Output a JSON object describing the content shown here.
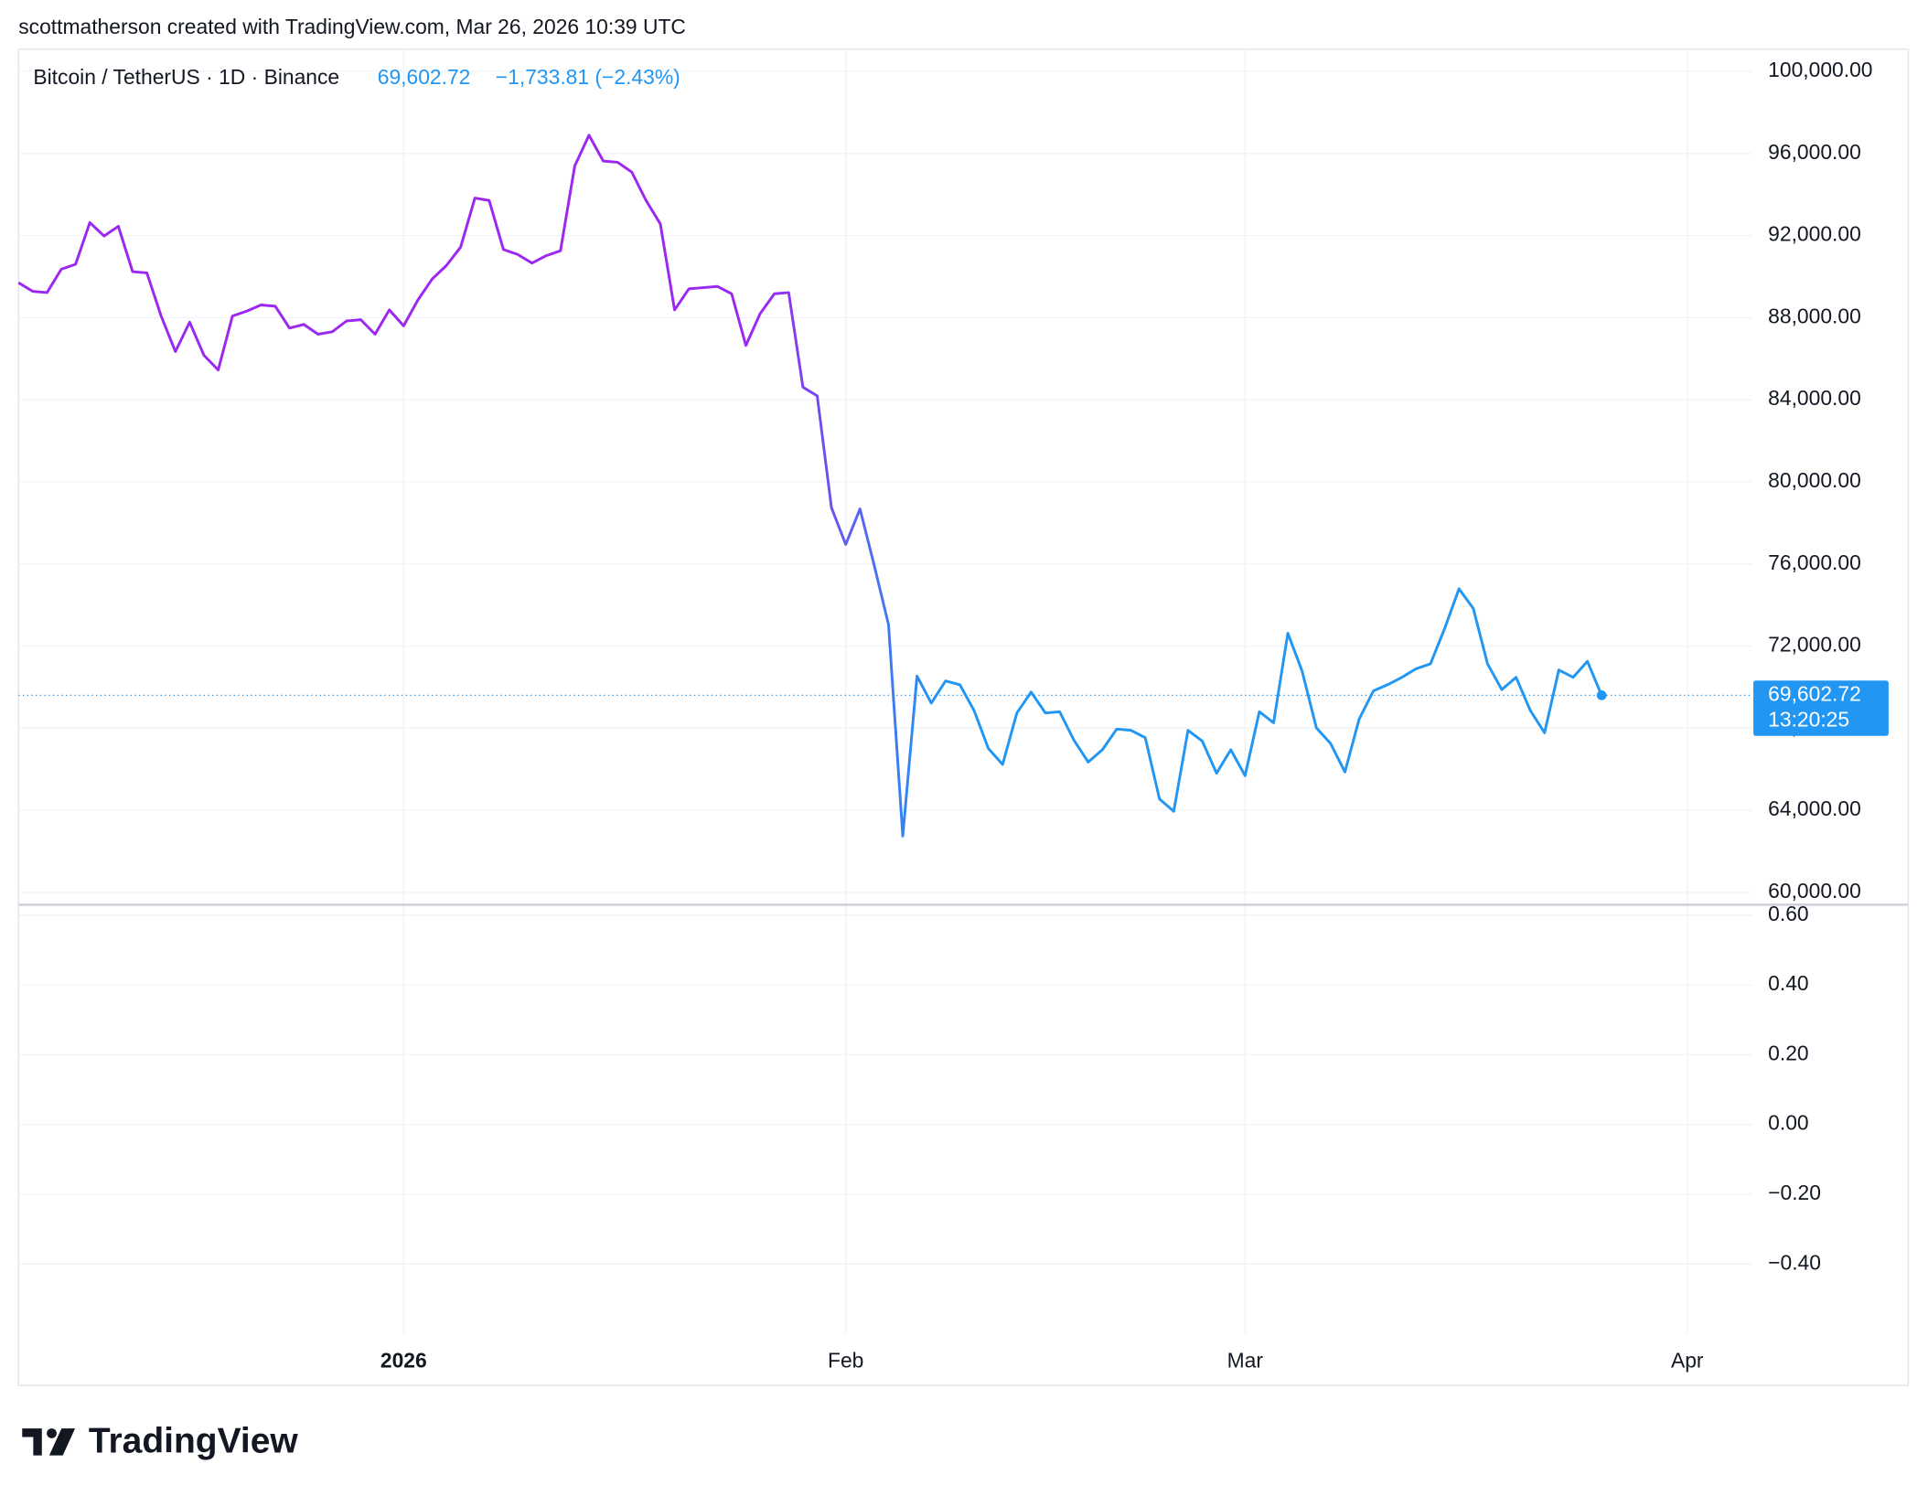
{
  "header": "scottmatherson created with TradingView.com, Mar 26, 2026 10:39 UTC",
  "legend": {
    "symbol": "Bitcoin / TetherUS · 1D · Binance",
    "price": "69,602.72",
    "change": "−1,733.81 (−2.43%)"
  },
  "price_tag": {
    "price": "69,602.72",
    "countdown": "13:20:25"
  },
  "logo": "TradingView",
  "chart_data": [
    {
      "type": "line",
      "colors": [
        "#9c27f0",
        "#2196f3"
      ],
      "values": [
        89700,
        89280,
        89220,
        90360,
        90600,
        92630,
        91980,
        92450,
        90240,
        90180,
        88080,
        86350,
        87780,
        86170,
        85450,
        88080,
        88320,
        88620,
        88560,
        87490,
        87670,
        87190,
        87310,
        87840,
        87900,
        87190,
        88380,
        87600,
        88860,
        89880,
        90540,
        91440,
        93830,
        93710,
        91320,
        91080,
        90660,
        91020,
        91260,
        95390,
        96890,
        95630,
        95570,
        95090,
        93710,
        92570,
        88380,
        89400,
        89460,
        89520,
        89160,
        86650,
        88200,
        89160,
        89220,
        84610,
        84190,
        78740,
        76950,
        78680,
        75930,
        73050,
        62750,
        70540,
        69220,
        70300,
        70120,
        68860,
        67010,
        66230,
        68740,
        69760,
        68740,
        68800,
        67420,
        66350,
        66950,
        67960,
        67900,
        67540,
        64550,
        63950,
        67900,
        67370,
        65810,
        66950,
        65690,
        68800,
        68260,
        72630,
        70780,
        68020,
        67250,
        65870,
        68440,
        69820,
        70120,
        70480,
        70900,
        71140,
        72870,
        74790,
        73830,
        71140,
        69880,
        70480,
        68860,
        67780,
        70840,
        70480,
        71260,
        69602.72
      ],
      "xlim": [
        0,
        121.55
      ],
      "xticks": [
        {
          "value": 27,
          "label": "2026"
        },
        {
          "value": 58,
          "label": "Feb"
        },
        {
          "value": 86,
          "label": "Mar"
        },
        {
          "value": 117,
          "label": "Apr"
        }
      ],
      "ylim": [
        59400,
        101080
      ],
      "yticks": [
        {
          "value": 60000,
          "label": "60,000.00"
        },
        {
          "value": 64000,
          "label": "64,000.00"
        },
        {
          "value": 68000,
          "label": "68,000.00"
        },
        {
          "value": 72000,
          "label": "72,000.00"
        },
        {
          "value": 76000,
          "label": "76,000.00"
        },
        {
          "value": 80000,
          "label": "80,000.00"
        },
        {
          "value": 84000,
          "label": "84,000.00"
        },
        {
          "value": 88000,
          "label": "88,000.00"
        },
        {
          "value": 92000,
          "label": "92,000.00"
        },
        {
          "value": 96000,
          "label": "96,000.00"
        },
        {
          "value": 100000,
          "label": "100,000.00"
        }
      ],
      "grid": true
    },
    {
      "type": "line",
      "ylim": [
        -0.6,
        0.63
      ],
      "yticks": [
        {
          "value": 0.6,
          "label": "0.60"
        },
        {
          "value": 0.4,
          "label": "0.40"
        },
        {
          "value": 0.2,
          "label": "0.20"
        },
        {
          "value": 0,
          "label": "0.00"
        },
        {
          "value": -0.2,
          "label": "−0.20"
        },
        {
          "value": -0.4,
          "label": "−0.40"
        }
      ],
      "grid": true
    }
  ]
}
